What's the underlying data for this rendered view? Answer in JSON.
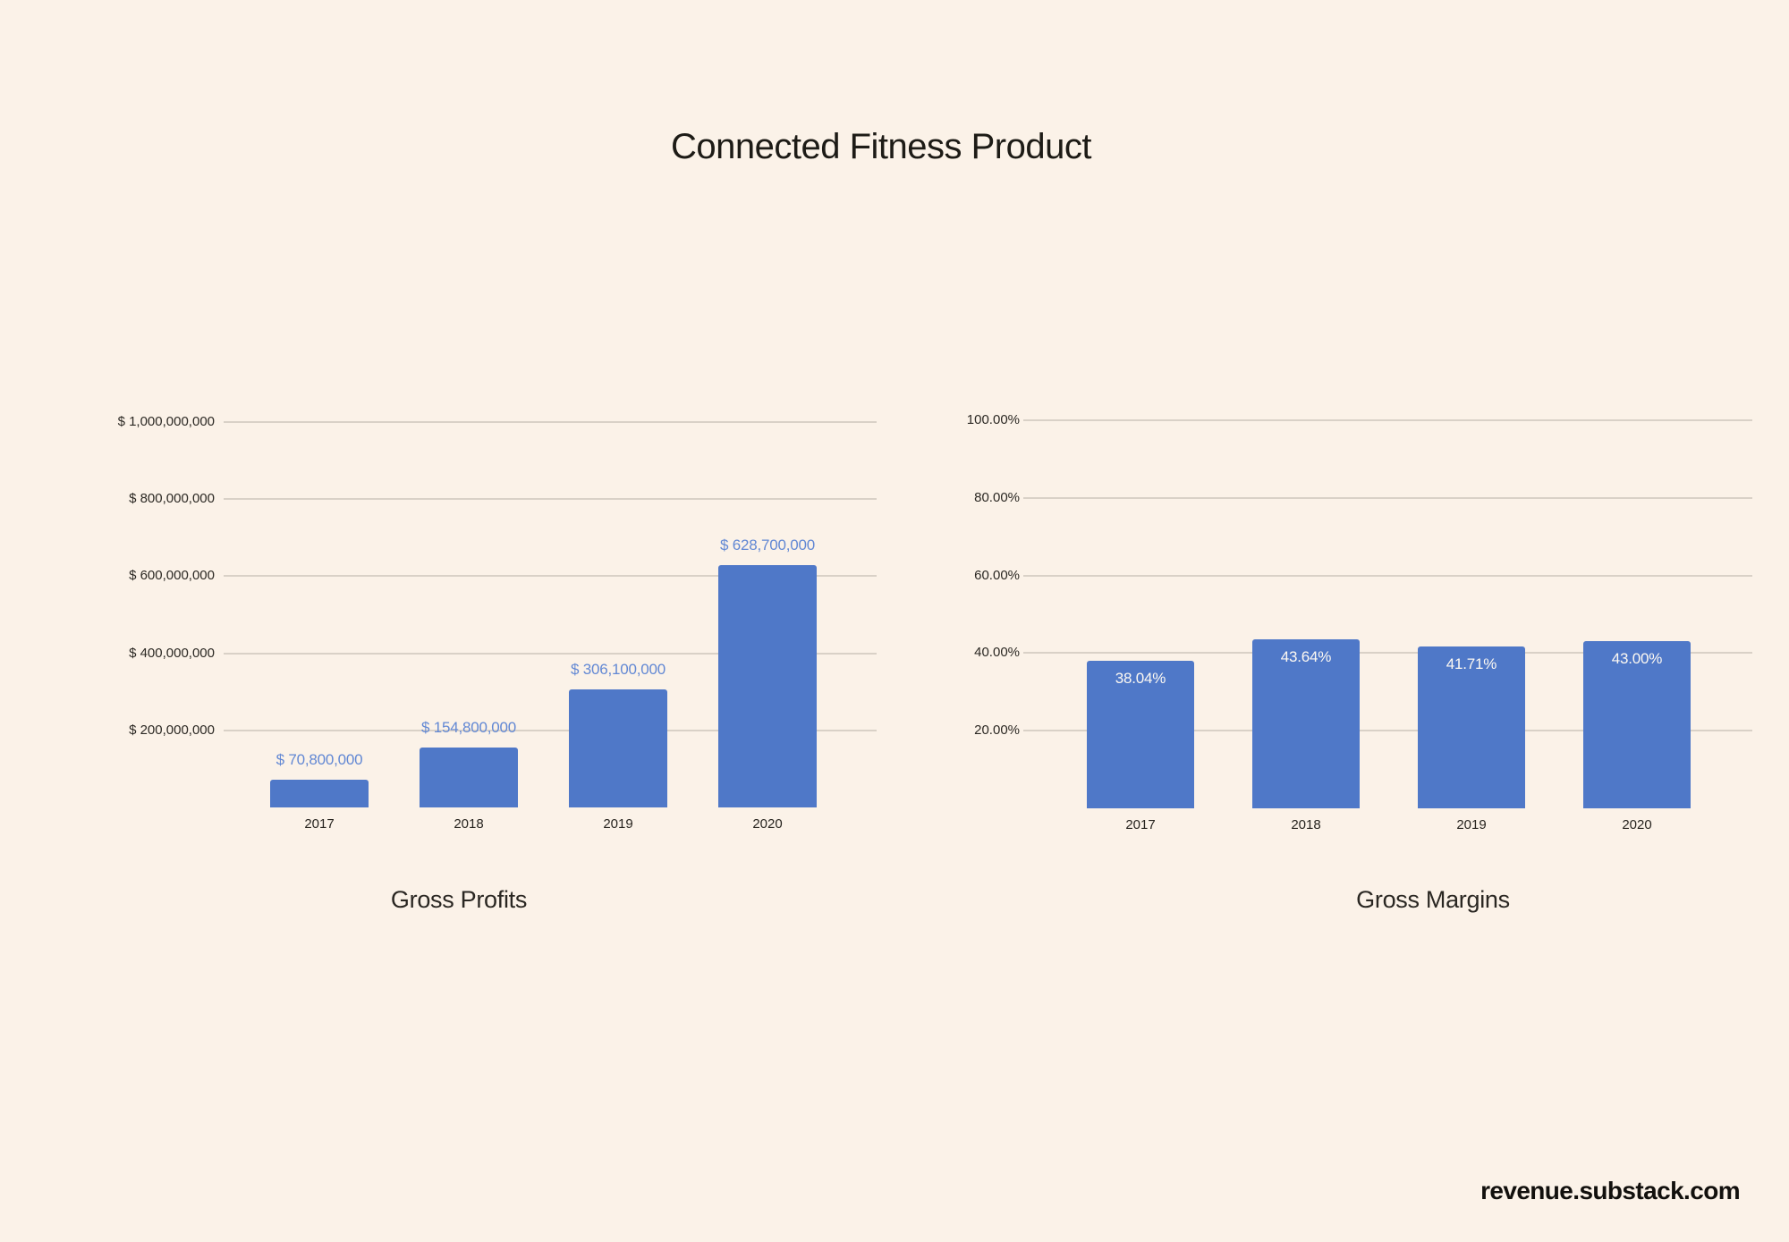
{
  "title": "Connected Fitness Product",
  "footer": "revenue.substack.com",
  "colors": {
    "background": "#fbf2e8",
    "bar": "#4f78c8",
    "data_label_blue": "#6288d4",
    "data_label_white": "#fdf9f2",
    "gridline": "#d9d1c7",
    "text": "#2b2823"
  },
  "chart_data": [
    {
      "type": "bar",
      "title": "Gross Profits",
      "categories": [
        "2017",
        "2018",
        "2019",
        "2020"
      ],
      "values": [
        70800000,
        154800000,
        306100000,
        628700000
      ],
      "data_labels": [
        "$ 70,800,000",
        "$ 154,800,000",
        "$ 306,100,000",
        "$ 628,700,000"
      ],
      "label_placement": "above",
      "xlabel": "",
      "ylabel": "",
      "ylim": [
        0,
        1000000000
      ],
      "grid": true,
      "legend": "none",
      "y_ticks": [
        {
          "value": 1000000000,
          "label": "$ 1,000,000,000"
        },
        {
          "value": 800000000,
          "label": "$ 800,000,000"
        },
        {
          "value": 600000000,
          "label": "$ 600,000,000"
        },
        {
          "value": 400000000,
          "label": "$ 400,000,000"
        },
        {
          "value": 200000000,
          "label": "$ 200,000,000"
        }
      ]
    },
    {
      "type": "bar",
      "title": "Gross Margins",
      "categories": [
        "2017",
        "2018",
        "2019",
        "2020"
      ],
      "values": [
        38.04,
        43.64,
        41.71,
        43.0
      ],
      "data_labels": [
        "38.04%",
        "43.64%",
        "41.71%",
        "43.00%"
      ],
      "label_placement": "inside-top",
      "xlabel": "",
      "ylabel": "",
      "ylim": [
        0,
        100
      ],
      "grid": true,
      "legend": "none",
      "y_ticks": [
        {
          "value": 100,
          "label": "100.00%"
        },
        {
          "value": 80,
          "label": "80.00%"
        },
        {
          "value": 60,
          "label": "60.00%"
        },
        {
          "value": 40,
          "label": "40.00%"
        },
        {
          "value": 20,
          "label": "20.00%"
        }
      ]
    }
  ]
}
